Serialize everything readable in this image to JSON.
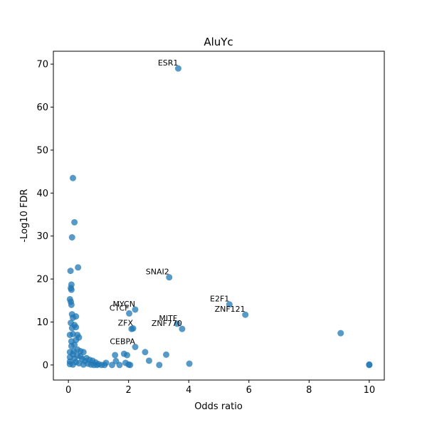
{
  "chart_data": {
    "type": "scatter",
    "title": "AluYc",
    "xlabel": "Odds ratio",
    "ylabel": "-Log10 FDR",
    "xlim": [
      -0.5,
      10.5
    ],
    "ylim": [
      -3.5,
      73
    ],
    "xticks": [
      0,
      2,
      4,
      6,
      8,
      10
    ],
    "yticks": [
      0,
      10,
      20,
      30,
      40,
      50,
      60,
      70
    ],
    "grid": false,
    "point_color": "#1f77b4",
    "points": [
      {
        "x": 3.65,
        "y": 69.0
      },
      {
        "x": 0.15,
        "y": 43.5
      },
      {
        "x": 0.2,
        "y": 33.2
      },
      {
        "x": 0.12,
        "y": 29.7
      },
      {
        "x": 0.32,
        "y": 22.7
      },
      {
        "x": 0.07,
        "y": 21.9
      },
      {
        "x": 3.35,
        "y": 20.4
      },
      {
        "x": 0.1,
        "y": 18.7
      },
      {
        "x": 0.08,
        "y": 17.9
      },
      {
        "x": 0.1,
        "y": 17.5
      },
      {
        "x": 0.05,
        "y": 15.3
      },
      {
        "x": 0.08,
        "y": 14.7
      },
      {
        "x": 0.1,
        "y": 14.0
      },
      {
        "x": 5.35,
        "y": 14.1
      },
      {
        "x": 2.22,
        "y": 12.9
      },
      {
        "x": 2.02,
        "y": 12.0
      },
      {
        "x": 0.12,
        "y": 11.8
      },
      {
        "x": 0.15,
        "y": 11.0
      },
      {
        "x": 0.25,
        "y": 11.3
      },
      {
        "x": 5.88,
        "y": 11.7
      },
      {
        "x": 0.08,
        "y": 9.8
      },
      {
        "x": 0.2,
        "y": 9.3
      },
      {
        "x": 3.62,
        "y": 9.6
      },
      {
        "x": 0.12,
        "y": 8.6
      },
      {
        "x": 0.25,
        "y": 8.8
      },
      {
        "x": 2.15,
        "y": 8.5
      },
      {
        "x": 2.1,
        "y": 8.4
      },
      {
        "x": 3.78,
        "y": 8.4
      },
      {
        "x": 0.05,
        "y": 7.0
      },
      {
        "x": 0.15,
        "y": 7.2
      },
      {
        "x": 0.3,
        "y": 7.0
      },
      {
        "x": 9.05,
        "y": 7.4
      },
      {
        "x": 0.35,
        "y": 6.4
      },
      {
        "x": 0.1,
        "y": 5.5
      },
      {
        "x": 0.25,
        "y": 5.8
      },
      {
        "x": 2.22,
        "y": 4.2
      },
      {
        "x": 0.1,
        "y": 4.4
      },
      {
        "x": 0.2,
        "y": 4.7
      },
      {
        "x": 0.3,
        "y": 3.6
      },
      {
        "x": 0.05,
        "y": 3.0
      },
      {
        "x": 0.18,
        "y": 3.2
      },
      {
        "x": 0.4,
        "y": 3.2
      },
      {
        "x": 0.5,
        "y": 3.0
      },
      {
        "x": 2.55,
        "y": 3.0
      },
      {
        "x": 1.55,
        "y": 2.3
      },
      {
        "x": 1.85,
        "y": 2.6
      },
      {
        "x": 1.95,
        "y": 2.3
      },
      {
        "x": 3.25,
        "y": 2.4
      },
      {
        "x": 0.15,
        "y": 2.5
      },
      {
        "x": 0.3,
        "y": 2.2
      },
      {
        "x": 0.4,
        "y": 2.0
      },
      {
        "x": 0.6,
        "y": 1.6
      },
      {
        "x": 0.05,
        "y": 1.8
      },
      {
        "x": 0.2,
        "y": 1.5
      },
      {
        "x": 0.45,
        "y": 1.4
      },
      {
        "x": 0.7,
        "y": 1.2
      },
      {
        "x": 0.8,
        "y": 1.0
      },
      {
        "x": 0.55,
        "y": 0.9
      },
      {
        "x": 2.68,
        "y": 1.0
      },
      {
        "x": 1.58,
        "y": 0.9
      },
      {
        "x": 0.05,
        "y": 0.8
      },
      {
        "x": 0.25,
        "y": 0.7
      },
      {
        "x": 0.9,
        "y": 0.6
      },
      {
        "x": 1.25,
        "y": 0.5
      },
      {
        "x": 1.9,
        "y": 0.5
      },
      {
        "x": 4.02,
        "y": 0.3
      },
      {
        "x": 0.35,
        "y": 0.4
      },
      {
        "x": 0.65,
        "y": 0.3
      },
      {
        "x": 1.0,
        "y": 0.2
      },
      {
        "x": 0.05,
        "y": 0.2
      },
      {
        "x": 0.15,
        "y": 0.1
      },
      {
        "x": 0.5,
        "y": 0.1
      },
      {
        "x": 0.75,
        "y": 0.1
      },
      {
        "x": 0.85,
        "y": 0.0
      },
      {
        "x": 1.1,
        "y": 0.0
      },
      {
        "x": 1.2,
        "y": 0.0
      },
      {
        "x": 1.45,
        "y": 0.0
      },
      {
        "x": 1.7,
        "y": 0.0
      },
      {
        "x": 2.0,
        "y": 0.1
      },
      {
        "x": 2.05,
        "y": 0.0
      },
      {
        "x": 3.02,
        "y": 0.0
      },
      {
        "x": 10.0,
        "y": 0.0
      },
      {
        "x": 10.0,
        "y": 0.1
      },
      {
        "x": 0.95,
        "y": 0.0
      }
    ],
    "annotations": [
      {
        "text": "ESR1",
        "x": 3.65,
        "y": 69.0
      },
      {
        "text": "SNAI2",
        "x": 3.35,
        "y": 20.4
      },
      {
        "text": "MYCN",
        "x": 2.22,
        "y": 12.9
      },
      {
        "text": "E2F1",
        "x": 5.35,
        "y": 14.1
      },
      {
        "text": "CTCF",
        "x": 2.02,
        "y": 12.0
      },
      {
        "text": "MITF",
        "x": 3.62,
        "y": 9.6
      },
      {
        "text": "ZNF121",
        "x": 5.88,
        "y": 11.7
      },
      {
        "text": "ZFX",
        "x": 2.15,
        "y": 8.5
      },
      {
        "text": "ZNF770",
        "x": 3.78,
        "y": 8.4
      },
      {
        "text": "CEBPA",
        "x": 2.22,
        "y": 4.2
      }
    ]
  }
}
